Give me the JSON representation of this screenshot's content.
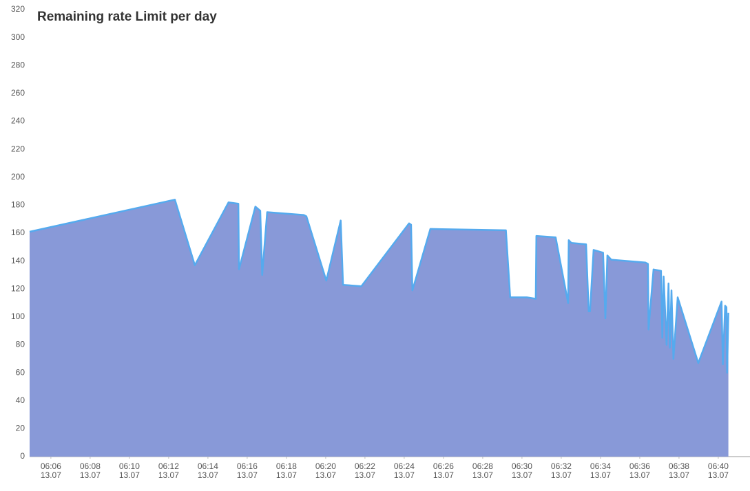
{
  "chart_data": {
    "type": "area",
    "title": "Remaining rate Limit per day",
    "x": [
      "13.07 06:04:55",
      "13.07 06:12:19",
      "13.07 06:13:20",
      "13.07 06:15:03",
      "13.07 06:15:33",
      "13.07 06:15:35",
      "13.07 06:16:25",
      "13.07 06:16:40",
      "13.07 06:16:46",
      "13.07 06:17:01",
      "13.07 06:18:53",
      "13.07 06:19:01",
      "13.07 06:20:02",
      "13.07 06:20:46",
      "13.07 06:20:53",
      "13.07 06:21:49",
      "13.07 06:24:15",
      "13.07 06:24:21",
      "13.07 06:24:25",
      "13.07 06:25:20",
      "13.07 06:29:11",
      "13.07 06:29:24",
      "13.07 06:30:15",
      "13.07 06:30:42",
      "13.07 06:30:44",
      "13.07 06:31:43",
      "13.07 06:32:21",
      "13.07 06:32:23",
      "13.07 06:32:31",
      "13.07 06:33:16",
      "13.07 06:33:24",
      "13.07 06:33:28",
      "13.07 06:33:39",
      "13.07 06:34:08",
      "13.07 06:34:15",
      "13.07 06:34:21",
      "13.07 06:34:33",
      "13.07 06:36:17",
      "13.07 06:36:25",
      "13.07 06:36:27",
      "13.07 06:36:42",
      "13.07 06:37:05",
      "13.07 06:37:09",
      "13.07 06:37:13",
      "13.07 06:37:22",
      "13.07 06:37:28",
      "13.07 06:37:32",
      "13.07 06:37:37",
      "13.07 06:37:43",
      "13.07 06:37:56",
      "13.07 06:38:59",
      "13.07 06:40:10",
      "13.07 06:40:14",
      "13.07 06:40:21",
      "13.07 06:40:25",
      "13.07 06:40:27",
      "13.07 06:40:31"
    ],
    "values": [
      161,
      184,
      137,
      182,
      181,
      134,
      179,
      176,
      130,
      175,
      173,
      172,
      126,
      169,
      123,
      122,
      167,
      166,
      119,
      163,
      162,
      114,
      114,
      113,
      158,
      157,
      110,
      155,
      153,
      152,
      104,
      104,
      148,
      146,
      99,
      144,
      141,
      139,
      138,
      91,
      134,
      133,
      85,
      129,
      80,
      124,
      78,
      119,
      70,
      114,
      67,
      111,
      66,
      108,
      107,
      60,
      103
    ],
    "color": "#55aaee",
    "fill": "#8899d8",
    "xlim": [
      "13.07 06:04:55",
      "13.07 06:41:37"
    ],
    "xticks": [
      {
        "value": "13.07 06:06",
        "label": [
          "06:06",
          "13.07"
        ]
      },
      {
        "value": "13.07 06:08",
        "label": [
          "06:08",
          "13.07"
        ]
      },
      {
        "value": "13.07 06:10",
        "label": [
          "06:10",
          "13.07"
        ]
      },
      {
        "value": "13.07 06:12",
        "label": [
          "06:12",
          "13.07"
        ]
      },
      {
        "value": "13.07 06:14",
        "label": [
          "06:14",
          "13.07"
        ]
      },
      {
        "value": "13.07 06:16",
        "label": [
          "06:16",
          "13.07"
        ]
      },
      {
        "value": "13.07 06:18",
        "label": [
          "06:18",
          "13.07"
        ]
      },
      {
        "value": "13.07 06:20",
        "label": [
          "06:20",
          "13.07"
        ]
      },
      {
        "value": "13.07 06:22",
        "label": [
          "06:22",
          "13.07"
        ]
      },
      {
        "value": "13.07 06:24",
        "label": [
          "06:24",
          "13.07"
        ]
      },
      {
        "value": "13.07 06:26",
        "label": [
          "06:26",
          "13.07"
        ]
      },
      {
        "value": "13.07 06:28",
        "label": [
          "06:28",
          "13.07"
        ]
      },
      {
        "value": "13.07 06:30",
        "label": [
          "06:30",
          "13.07"
        ]
      },
      {
        "value": "13.07 06:32",
        "label": [
          "06:32",
          "13.07"
        ]
      },
      {
        "value": "13.07 06:34",
        "label": [
          "06:34",
          "13.07"
        ]
      },
      {
        "value": "13.07 06:36",
        "label": [
          "06:36",
          "13.07"
        ]
      },
      {
        "value": "13.07 06:38",
        "label": [
          "06:38",
          "13.07"
        ]
      },
      {
        "value": "13.07 06:40",
        "label": [
          "06:40",
          "13.07"
        ]
      }
    ],
    "ylim": [
      0,
      320
    ],
    "yticks": [
      0,
      20,
      40,
      60,
      80,
      100,
      120,
      140,
      160,
      180,
      200,
      220,
      240,
      260,
      280,
      300,
      320
    ]
  }
}
